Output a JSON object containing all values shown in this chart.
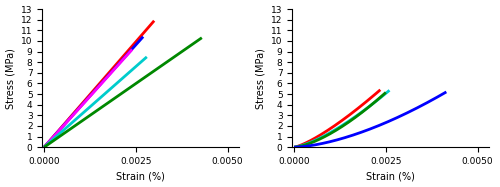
{
  "left": {
    "curves": [
      {
        "color": "#ff0000",
        "x": [
          0.0,
          0.003
        ],
        "y": [
          0.0,
          11.9
        ],
        "lw": 2.0
      },
      {
        "color": "#0000ff",
        "x": [
          0.0,
          0.0027
        ],
        "y": [
          0.0,
          10.4
        ],
        "lw": 2.0
      },
      {
        "color": "#ff00ff",
        "x": [
          0.0,
          0.0024
        ],
        "y": [
          0.0,
          9.2
        ],
        "lw": 2.0
      },
      {
        "color": "#00cccc",
        "x": [
          0.0,
          0.0028
        ],
        "y": [
          0.0,
          8.5
        ],
        "lw": 2.0
      },
      {
        "color": "#008800",
        "x": [
          0.0,
          0.0043
        ],
        "y": [
          0.0,
          10.3
        ],
        "lw": 2.0
      }
    ],
    "xlim": [
      -5e-05,
      0.0053
    ],
    "ylim": [
      0,
      13
    ],
    "xticks": [
      0.0,
      0.0025,
      0.005
    ],
    "yticks": [
      0,
      1,
      2,
      3,
      4,
      5,
      6,
      7,
      8,
      9,
      10,
      11,
      12,
      13
    ],
    "xlabel": "Strain (%)",
    "ylabel": "Stress (MPa)"
  },
  "right": {
    "curves": [
      {
        "color": "#ff0000",
        "x": [
          0.0,
          0.00235
        ],
        "y": [
          0.0,
          5.4
        ],
        "power": 1.3,
        "lw": 2.0
      },
      {
        "color": "#00cccc",
        "x": [
          0.0,
          0.0026
        ],
        "y": [
          0.0,
          5.35
        ],
        "power": 1.4,
        "lw": 2.0
      },
      {
        "color": "#008800",
        "x": [
          0.0,
          0.0025
        ],
        "y": [
          0.0,
          5.15
        ],
        "power": 1.5,
        "lw": 2.0
      },
      {
        "color": "#0000ff",
        "x": [
          0.0,
          0.00415
        ],
        "y": [
          0.0,
          5.2
        ],
        "power": 1.6,
        "lw": 2.0
      }
    ],
    "xlim": [
      -5e-05,
      0.0053
    ],
    "ylim": [
      0,
      13
    ],
    "xticks": [
      0.0,
      0.0025,
      0.005
    ],
    "yticks": [
      0,
      1,
      2,
      3,
      4,
      5,
      6,
      7,
      8,
      9,
      10,
      11,
      12,
      13
    ],
    "xlabel": "Strain (%)",
    "ylabel": "Stress (MPa)"
  },
  "fontsize": 7.0,
  "tick_fontsize": 6.5
}
